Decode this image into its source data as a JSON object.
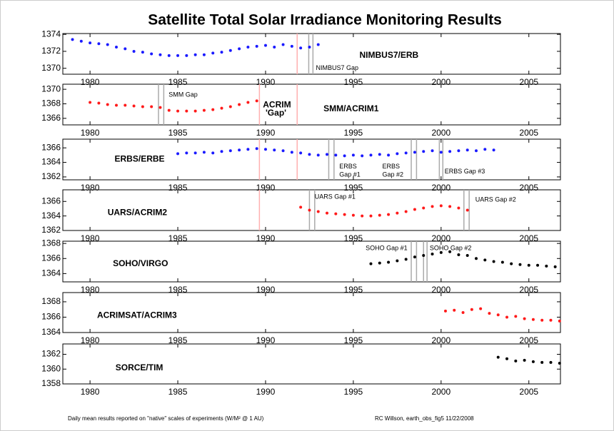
{
  "title": "Satellite Total Solar Irradiance Monitoring Results",
  "footnotes": [
    "Daily mean results reported on \"native\" scales of experiments (W/M² @ 1 AU)",
    "RC Willson, earth_obs_fig5  11/22/2008"
  ],
  "chart_data": [
    {
      "type": "scatter",
      "xlim": [
        1978.45,
        2006.8
      ],
      "ylim": [
        1369.3,
        1374.1
      ],
      "xticks": [
        1980,
        1985,
        1990,
        1995,
        2000,
        2005
      ],
      "yticks": [
        1370,
        1372,
        1374
      ],
      "series": [
        {
          "color": "#1a1aff",
          "x": [
            1979,
            1979.5,
            1980,
            1980.5,
            1981,
            1981.5,
            1982,
            1982.5,
            1983,
            1983.5,
            1984,
            1984.5,
            1985,
            1985.5,
            1986,
            1986.5,
            1987,
            1987.5,
            1988,
            1988.5,
            1989,
            1989.5,
            1990,
            1990.5,
            1991,
            1991.5,
            1992,
            1992.5,
            1993
          ],
          "values": [
            1373.4,
            1373.2,
            1373.0,
            1372.9,
            1372.8,
            1372.5,
            1372.3,
            1372.0,
            1371.9,
            1371.7,
            1371.6,
            1371.5,
            1371.5,
            1371.5,
            1371.6,
            1371.6,
            1371.8,
            1371.9,
            1372.1,
            1372.3,
            1372.5,
            1372.6,
            1372.7,
            1372.5,
            1372.8,
            1372.6,
            1372.4,
            1372.5,
            1372.8
          ]
        }
      ],
      "gaps": [
        {
          "x": 1991.8,
          "color": "#ffb0b0"
        },
        {
          "x": 1992.46,
          "color": "#aaaaaa"
        },
        {
          "x": 1992.7,
          "color": "#aaaaaa"
        }
      ],
      "annotations": [
        {
          "text": "NIMBUS7/ERB",
          "x": 1995.35,
          "y": 1371.5,
          "color": "#1a1aff",
          "size": "big"
        },
        {
          "text": "NIMBUS7 Gap",
          "x": 1992.87,
          "y": 1370.0,
          "color": "#000000",
          "size": "small"
        }
      ]
    },
    {
      "type": "scatter",
      "xlim": [
        1978.45,
        2006.8
      ],
      "ylim": [
        1365.1,
        1370.7
      ],
      "xticks": [
        1980,
        1985,
        1990,
        1995,
        2000,
        2005
      ],
      "yticks": [
        1366,
        1368,
        1370
      ],
      "series": [
        {
          "color": "#ff1a1a",
          "x": [
            1980,
            1980.5,
            1981,
            1981.5,
            1982,
            1982.5,
            1983,
            1983.5,
            1984,
            1984.5,
            1985,
            1985.5,
            1986,
            1986.5,
            1987,
            1987.5,
            1988,
            1988.5,
            1989,
            1989.5
          ],
          "values": [
            1368.2,
            1368.1,
            1367.9,
            1367.8,
            1367.8,
            1367.7,
            1367.6,
            1367.6,
            1367.5,
            1367.1,
            1367.0,
            1367.0,
            1367.0,
            1367.1,
            1367.2,
            1367.4,
            1367.6,
            1367.9,
            1368.2,
            1368.4
          ]
        }
      ],
      "gaps": [
        {
          "x": 1983.9,
          "color": "#aaaaaa"
        },
        {
          "x": 1984.2,
          "color": "#aaaaaa"
        },
        {
          "x": 1989.65,
          "color": "#ffb0b0"
        },
        {
          "x": 1991.8,
          "color": "#ffb0b0"
        }
      ],
      "annotations": [
        {
          "text": "SMM Gap",
          "x": 1984.48,
          "y": 1369.2,
          "color": "#000000",
          "size": "small"
        },
        {
          "text": "ACRIM",
          "x": 1989.85,
          "y": 1367.8,
          "color": "#ff1a1a",
          "size": "big"
        },
        {
          "text": "'Gap'",
          "x": 1990.0,
          "y": 1366.7,
          "color": "#ff1a1a",
          "size": "big"
        },
        {
          "text": "SMM/ACRIM1",
          "x": 1993.3,
          "y": 1367.3,
          "color": "#ff1a1a",
          "size": "big"
        }
      ]
    },
    {
      "type": "scatter",
      "xlim": [
        1978.45,
        2006.8
      ],
      "ylim": [
        1361.6,
        1367.2
      ],
      "xticks": [
        1980,
        1985,
        1990,
        1995,
        2000,
        2005
      ],
      "yticks": [
        1362,
        1364,
        1366
      ],
      "series": [
        {
          "color": "#1a1aff",
          "x": [
            1985,
            1985.5,
            1986,
            1986.5,
            1987,
            1987.5,
            1988,
            1988.5,
            1989,
            1989.5,
            1990,
            1990.5,
            1991,
            1991.5,
            1992,
            1992.5,
            1993,
            1993.5,
            1994,
            1994.5,
            1995,
            1995.5,
            1996,
            1996.5,
            1997,
            1997.5,
            1998,
            1998.5,
            1999,
            1999.5,
            2000,
            2000.5,
            2001,
            2001.5,
            2002,
            2002.5,
            2003
          ],
          "values": [
            1365.2,
            1365.3,
            1365.3,
            1365.4,
            1365.3,
            1365.5,
            1365.6,
            1365.7,
            1365.8,
            1365.9,
            1365.8,
            1365.7,
            1365.6,
            1365.4,
            1365.3,
            1365.1,
            1365.0,
            1365.1,
            1365.0,
            1364.9,
            1365.0,
            1364.9,
            1365.0,
            1365.1,
            1365.0,
            1365.2,
            1365.3,
            1365.4,
            1365.5,
            1365.6,
            1365.4,
            1365.5,
            1365.6,
            1365.7,
            1365.6,
            1365.8,
            1365.7
          ]
        }
      ],
      "gaps": [
        {
          "x": 1989.65,
          "color": "#ffb0b0"
        },
        {
          "x": 1991.8,
          "color": "#ffb0b0"
        },
        {
          "x": 1993.6,
          "color": "#aaaaaa"
        },
        {
          "x": 1993.9,
          "color": "#aaaaaa"
        },
        {
          "x": 1998.3,
          "color": "#aaaaaa"
        },
        {
          "x": 1998.6,
          "color": "#aaaaaa"
        },
        {
          "x": 1999.9,
          "color": "#aaaaaa"
        },
        {
          "x": 2000.1,
          "color": "#aaaaaa"
        }
      ],
      "annotations": [
        {
          "text": "ERBS/ERBE",
          "x": 1981.4,
          "y": 1364.4,
          "color": "#1a1aff",
          "size": "big"
        },
        {
          "text": "ERBS",
          "x": 1994.2,
          "y": 1363.4,
          "color": "#000000",
          "size": "small"
        },
        {
          "text": "Gap #1",
          "x": 1994.2,
          "y": 1362.3,
          "color": "#000000",
          "size": "small"
        },
        {
          "text": "ERBS",
          "x": 1996.65,
          "y": 1363.4,
          "color": "#000000",
          "size": "small"
        },
        {
          "text": "Gap #2",
          "x": 1996.65,
          "y": 1362.3,
          "color": "#000000",
          "size": "small"
        },
        {
          "text": "ERBS Gap #3",
          "x": 2000.2,
          "y": 1362.7,
          "color": "#000000",
          "size": "small"
        }
      ]
    },
    {
      "type": "scatter",
      "xlim": [
        1978.45,
        2006.8
      ],
      "ylim": [
        1362,
        1367.6
      ],
      "xticks": [
        1980,
        1985,
        1990,
        1995,
        2000,
        2005
      ],
      "yticks": [
        1362,
        1364,
        1366
      ],
      "series": [
        {
          "color": "#ff1a1a",
          "x": [
            1992,
            1992.5,
            1993,
            1993.5,
            1994,
            1994.5,
            1995,
            1995.5,
            1996,
            1996.5,
            1997,
            1997.5,
            1998,
            1998.5,
            1999,
            1999.5,
            2000,
            2000.5,
            2001,
            2001.5
          ],
          "values": [
            1365.2,
            1364.8,
            1364.6,
            1364.4,
            1364.3,
            1364.2,
            1364.1,
            1364.0,
            1364.0,
            1364.1,
            1364.2,
            1364.4,
            1364.6,
            1364.9,
            1365.1,
            1365.3,
            1365.4,
            1365.3,
            1365.1,
            1364.8
          ]
        }
      ],
      "gaps": [
        {
          "x": 1989.65,
          "color": "#ffb0b0"
        },
        {
          "x": 1992.5,
          "color": "#aaaaaa"
        },
        {
          "x": 1992.8,
          "color": "#aaaaaa"
        },
        {
          "x": 2001.3,
          "color": "#aaaaaa"
        },
        {
          "x": 2001.6,
          "color": "#aaaaaa"
        }
      ],
      "annotations": [
        {
          "text": "UARS Gap #1",
          "x": 1992.8,
          "y": 1366.6,
          "color": "#000000",
          "size": "small"
        },
        {
          "text": "UARS/ACRIM2",
          "x": 1981.0,
          "y": 1364.4,
          "color": "#ff1a1a",
          "size": "big"
        },
        {
          "text": "UARS Gap #2",
          "x": 2001.95,
          "y": 1366.2,
          "color": "#000000",
          "size": "small"
        }
      ]
    },
    {
      "type": "scatter",
      "xlim": [
        1978.45,
        2006.8
      ],
      "ylim": [
        1362.9,
        1368.3
      ],
      "xticks": [
        1980,
        1985,
        1990,
        1995,
        2000,
        2005
      ],
      "yticks": [
        1364,
        1366,
        1368
      ],
      "series": [
        {
          "color": "#000000",
          "x": [
            1996,
            1996.5,
            1997,
            1997.5,
            1998,
            1998.5,
            1999,
            1999.5,
            2000,
            2000.5,
            2001,
            2001.5,
            2002,
            2002.5,
            2003,
            2003.5,
            2004,
            2004.5,
            2005,
            2005.5,
            2006,
            2006.5
          ],
          "values": [
            1365.3,
            1365.4,
            1365.5,
            1365.7,
            1365.9,
            1366.2,
            1366.4,
            1366.6,
            1366.8,
            1366.9,
            1366.5,
            1366.4,
            1366.0,
            1365.8,
            1365.6,
            1365.5,
            1365.3,
            1365.2,
            1365.1,
            1365.1,
            1365.0,
            1364.9
          ]
        }
      ],
      "gaps": [
        {
          "x": 1998.3,
          "color": "#aaaaaa"
        },
        {
          "x": 1998.6,
          "color": "#aaaaaa"
        },
        {
          "x": 1999.0,
          "color": "#aaaaaa"
        },
        {
          "x": 1999.2,
          "color": "#aaaaaa"
        }
      ],
      "annotations": [
        {
          "text": "SOHO Gap #1",
          "x": 1995.7,
          "y": 1367.35,
          "color": "#000000",
          "size": "small"
        },
        {
          "text": "SOHO Gap #2",
          "x": 1999.35,
          "y": 1367.35,
          "color": "#000000",
          "size": "small"
        },
        {
          "text": "SOHO/VIRGO",
          "x": 1981.3,
          "y": 1365.3,
          "color": "#000000",
          "size": "big"
        }
      ]
    },
    {
      "type": "scatter",
      "xlim": [
        1978.45,
        2006.8
      ],
      "ylim": [
        1364,
        1369.2
      ],
      "xticks": [
        1980,
        1985,
        1990,
        1995,
        2000,
        2005
      ],
      "yticks": [
        1364,
        1366,
        1368
      ],
      "series": [
        {
          "color": "#ff1a1a",
          "x": [
            2000.25,
            2000.75,
            2001.25,
            2001.75,
            2002.25,
            2002.75,
            2003.25,
            2003.75,
            2004.25,
            2004.75,
            2005.25,
            2005.75,
            2006.25,
            2006.75
          ],
          "values": [
            1366.8,
            1366.9,
            1366.6,
            1367.0,
            1367.1,
            1366.5,
            1366.3,
            1366.0,
            1366.1,
            1365.8,
            1365.7,
            1365.6,
            1365.6,
            1365.5
          ]
        }
      ],
      "gaps": [],
      "annotations": [
        {
          "text": "ACRIMSAT/ACRIM3",
          "x": 1980.4,
          "y": 1366.2,
          "color": "#ff1a1a",
          "size": "big"
        }
      ]
    },
    {
      "type": "scatter",
      "xlim": [
        1978.45,
        2006.8
      ],
      "ylim": [
        1358,
        1363.4
      ],
      "xticks": [
        1980,
        1985,
        1990,
        1995,
        2000,
        2005
      ],
      "yticks": [
        1358,
        1360,
        1362
      ],
      "series": [
        {
          "color": "#000000",
          "x": [
            2003.25,
            2003.75,
            2004.25,
            2004.75,
            2005.25,
            2005.75,
            2006.25,
            2006.75
          ],
          "values": [
            1361.6,
            1361.4,
            1361.1,
            1361.2,
            1361.0,
            1360.9,
            1360.9,
            1360.8
          ]
        }
      ],
      "gaps": [],
      "annotations": [
        {
          "text": "SORCE/TIM",
          "x": 1981.45,
          "y": 1360.15,
          "color": "#000000",
          "size": "big"
        }
      ]
    }
  ]
}
